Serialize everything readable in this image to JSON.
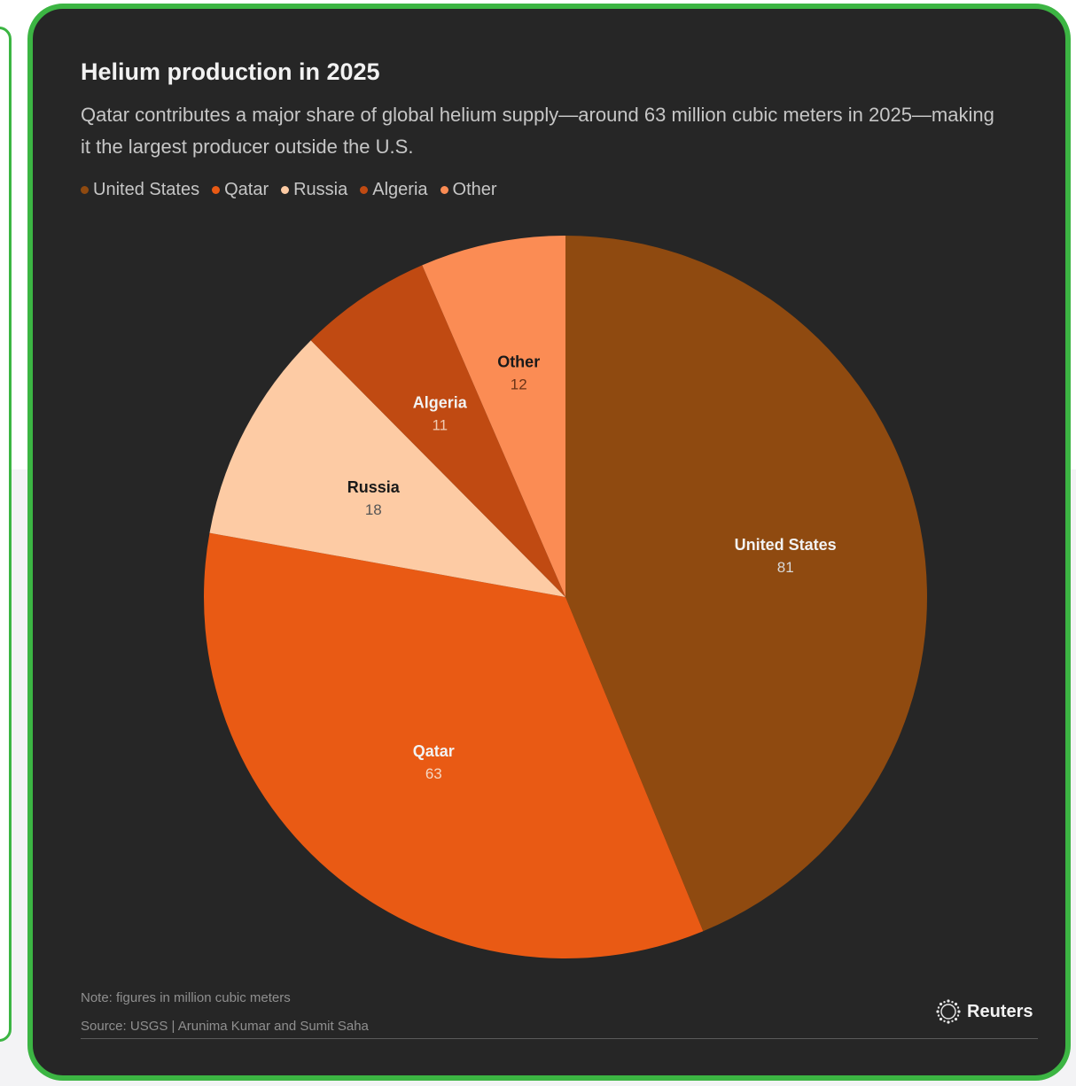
{
  "chart_data": {
    "type": "pie",
    "title": "Helium production in 2025",
    "subtitle": "Qatar contributes a major share of global helium supply—around 63 million cubic meters in 2025—making it the largest producer outside the U.S.",
    "legend_placement": "top-left",
    "categories": [
      "United States",
      "Qatar",
      "Russia",
      "Algeria",
      "Other"
    ],
    "values": [
      81,
      63,
      18,
      11,
      12
    ],
    "colors": [
      "#8f4a10",
      "#e95a14",
      "#fdcba4",
      "#c04a12",
      "#fb8c54"
    ],
    "label_text_colors": [
      "#f2f2f2",
      "#f2f2f2",
      "#1a1a1a",
      "#f2f2f2",
      "#1a1a1a"
    ],
    "value_text_colors": [
      "#d9d9d9",
      "#f5d7c2",
      "#555555",
      "#f0cbb2",
      "#6a3418"
    ],
    "note": "Note: figures in million cubic meters",
    "source": "Source: USGS | Arunima Kumar and Sumit Saha"
  },
  "brand": {
    "name": "Reuters",
    "icon": "reuters-logo-icon"
  }
}
